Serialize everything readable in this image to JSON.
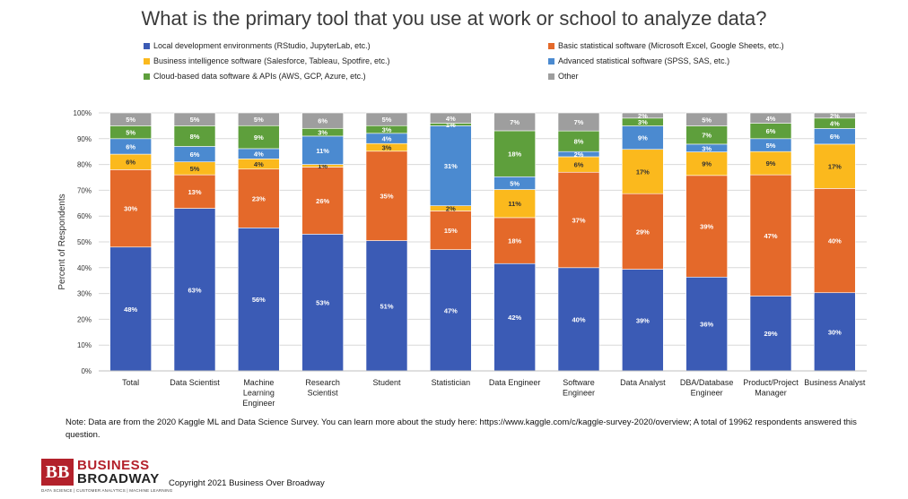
{
  "chart_data": {
    "type": "bar",
    "stacked": true,
    "title": "What is the primary tool that you use at work or school to analyze data?",
    "ylabel": "Percent of Respondents",
    "ylim": [
      0,
      100
    ],
    "yticks": [
      "0%",
      "10%",
      "20%",
      "30%",
      "40%",
      "50%",
      "60%",
      "70%",
      "80%",
      "90%",
      "100%"
    ],
    "grid": true,
    "categories": [
      [
        "Total"
      ],
      [
        "Data Scientist"
      ],
      [
        "Machine",
        "Learning",
        "Engineer"
      ],
      [
        "Research",
        "Scientist"
      ],
      [
        "Student"
      ],
      [
        "Statistician"
      ],
      [
        "Data Engineer"
      ],
      [
        "Software",
        "Engineer"
      ],
      [
        "Data Analyst"
      ],
      [
        "DBA/Database",
        "Engineer"
      ],
      [
        "Product/Project",
        "Manager"
      ],
      [
        "Business Analyst"
      ]
    ],
    "series": [
      {
        "name": "Local development environments (RStudio, JupyterLab, etc.)",
        "color": "#3b5bb5",
        "values": [
          48,
          63,
          56,
          53,
          51,
          47,
          42,
          40,
          39,
          36,
          29,
          30
        ]
      },
      {
        "name": "Basic statistical software (Microsoft Excel, Google Sheets, etc.)",
        "color": "#e4692a",
        "values": [
          30,
          13,
          23,
          26,
          35,
          15,
          18,
          37,
          29,
          39,
          47,
          40
        ]
      },
      {
        "name": "Business intelligence software (Salesforce, Tableau, Spotfire, etc.)",
        "color": "#fbb91d",
        "values": [
          6,
          5,
          4,
          1,
          3,
          2,
          11,
          6,
          17,
          9,
          9,
          17
        ]
      },
      {
        "name": "Advanced statistical software (SPSS, SAS, etc.)",
        "color": "#4b8ad0",
        "values": [
          6,
          6,
          4,
          11,
          4,
          31,
          5,
          2,
          9,
          3,
          5,
          6
        ]
      },
      {
        "name": "Cloud-based data software & APIs (AWS, GCP, Azure, etc.)",
        "color": "#5e9f3c",
        "values": [
          5,
          8,
          9,
          3,
          3,
          1,
          18,
          8,
          3,
          7,
          6,
          4
        ]
      },
      {
        "name": "Other",
        "color": "#9e9e9e",
        "values": [
          5,
          5,
          5,
          6,
          5,
          4,
          7,
          7,
          2,
          5,
          4,
          2
        ]
      }
    ],
    "legend_position": "top"
  },
  "note": "Note: Data are from the 2020 Kaggle ML and Data Science Survey. You can learn more about the study here: https://www.kaggle.com/c/kaggle-survey-2020/overview; A total of 19962 respondents answered this question.",
  "copyright": "Copyright 2021 Business Over Broadway",
  "logo": {
    "mark": "BB",
    "line1": "BUSINESS",
    "line2": "BROADWAY",
    "tagline": "DATA SCIENCE | CUSTOMER ANALYTICS | MACHINE LEARNING"
  }
}
